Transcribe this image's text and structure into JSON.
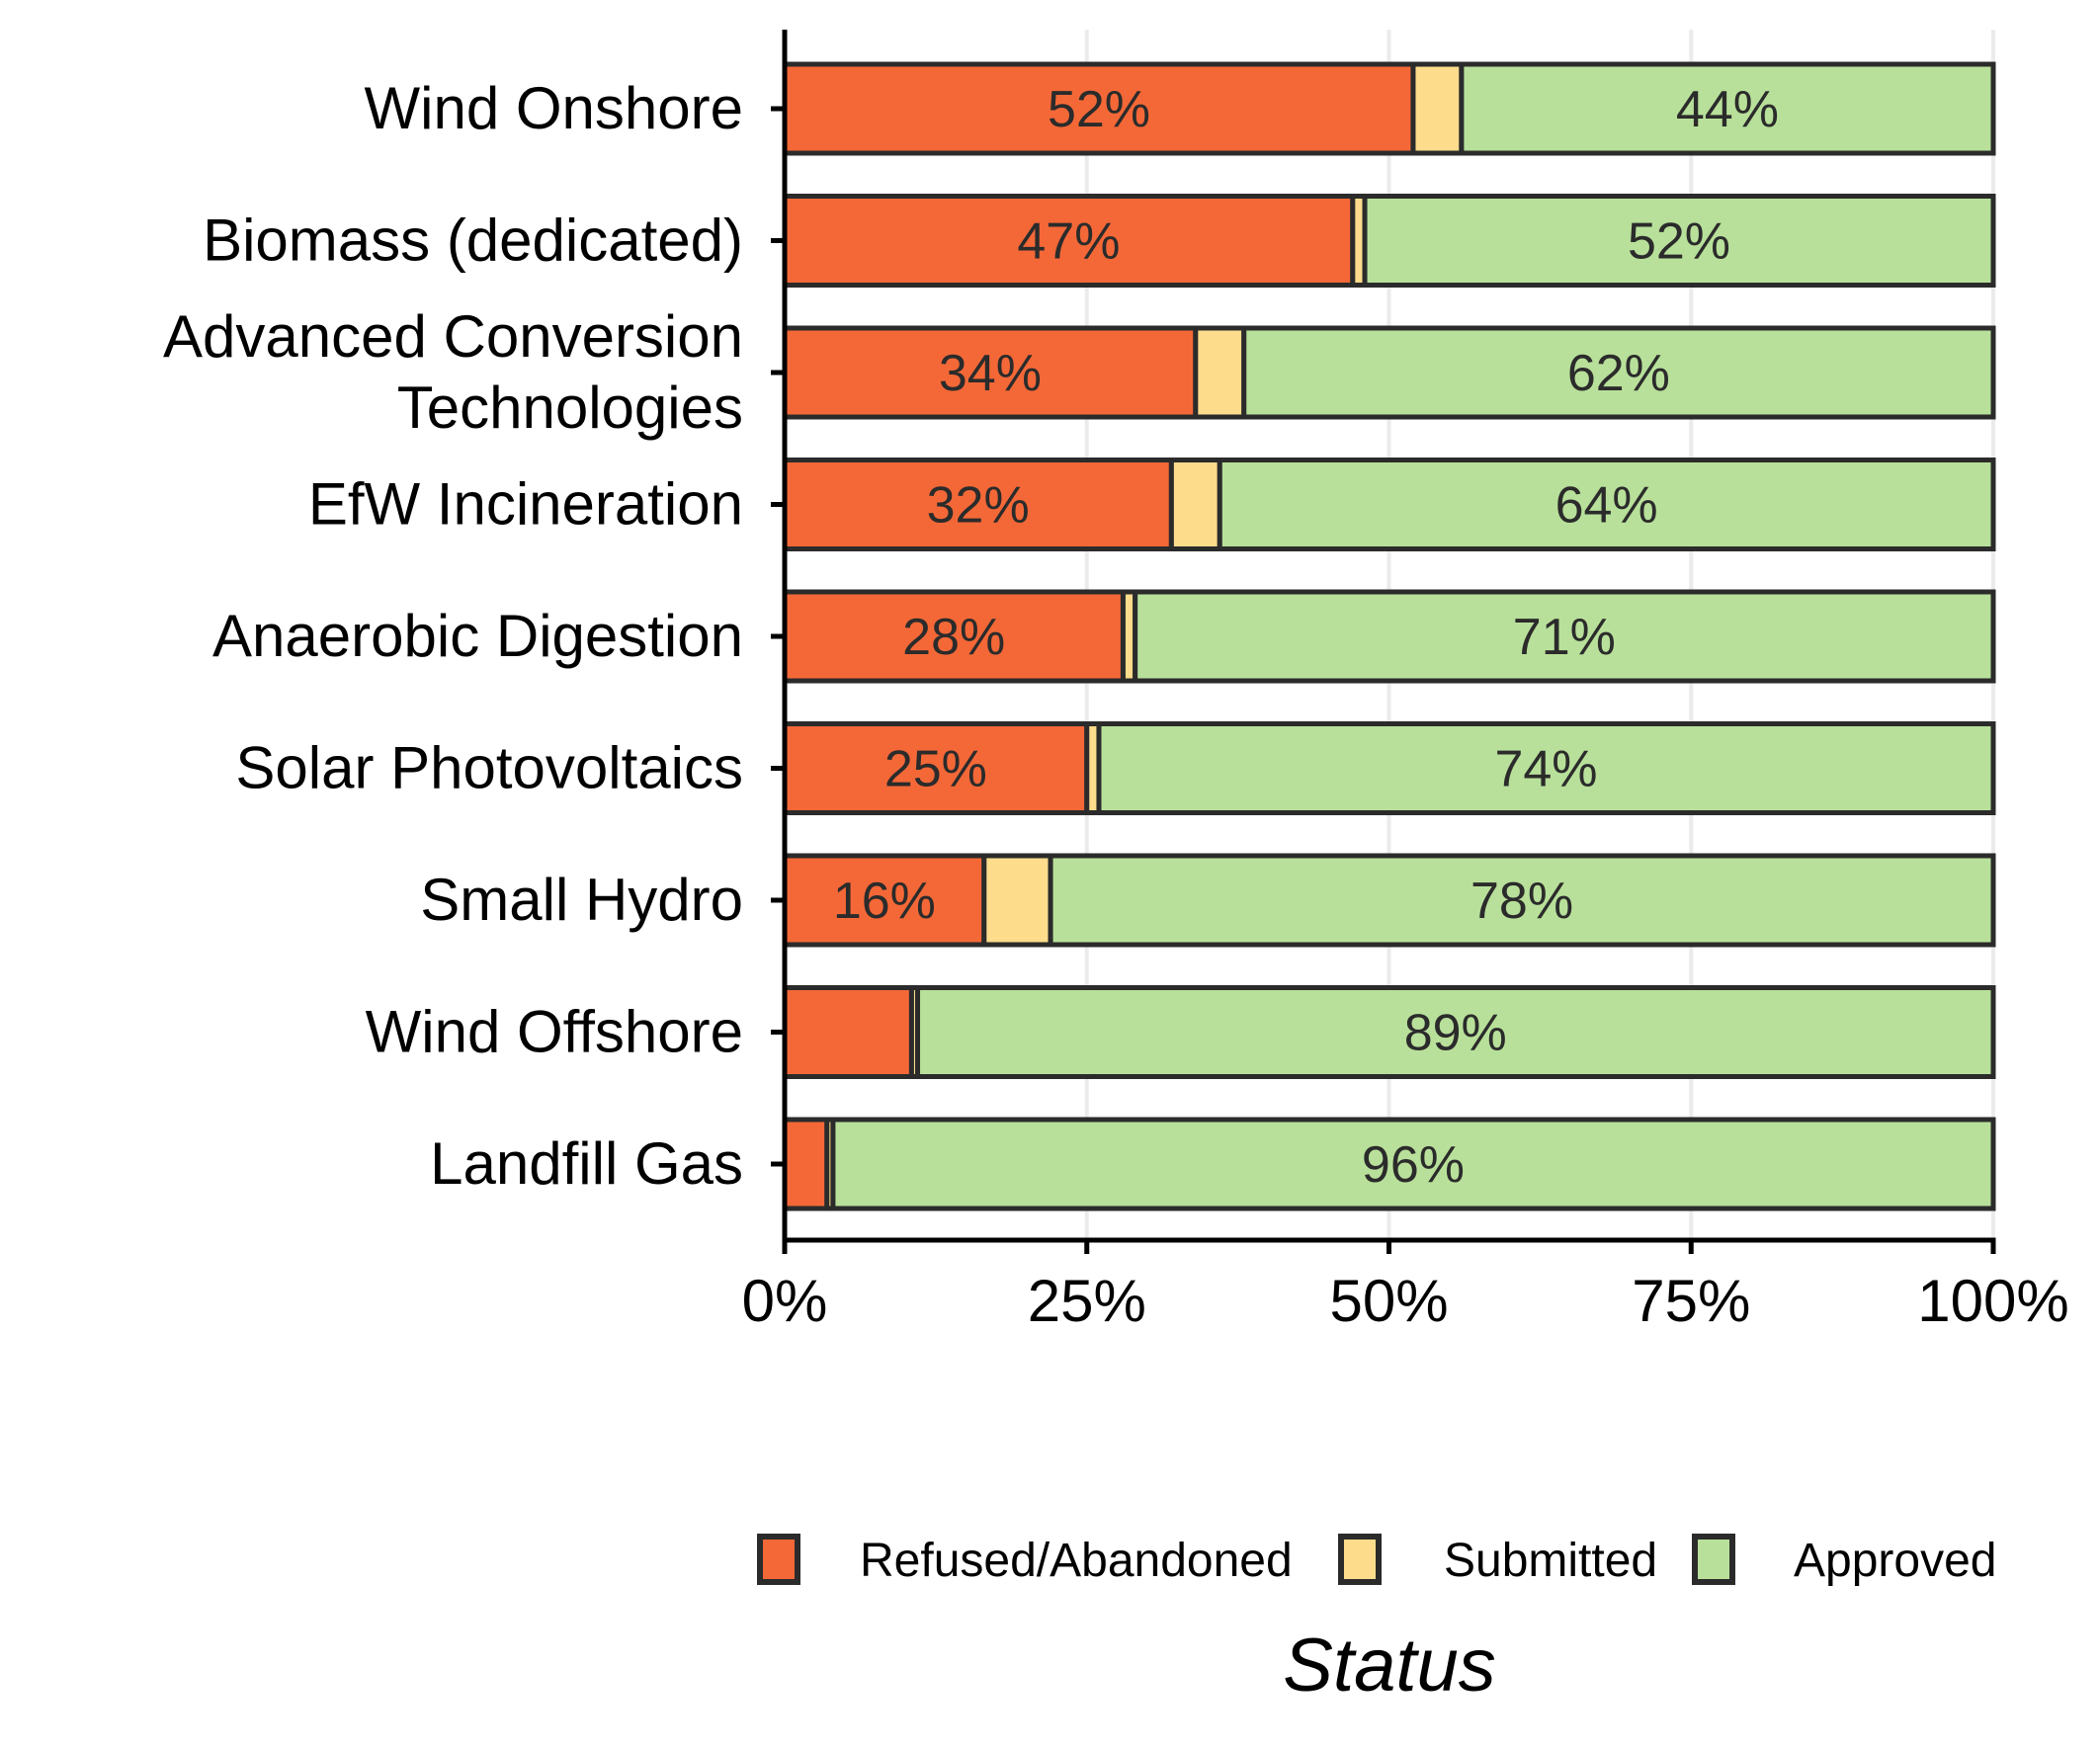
{
  "chart_data": {
    "type": "bar",
    "orientation": "horizontal",
    "stacked": true,
    "title": "",
    "xlabel": "",
    "ylabel": "",
    "xlim": [
      0,
      100
    ],
    "x_ticks": [
      0,
      25,
      50,
      75,
      100
    ],
    "x_tick_labels": [
      "0%",
      "25%",
      "50%",
      "75%",
      "100%"
    ],
    "categories": [
      "Wind Onshore",
      "Biomass (dedicated)",
      "Advanced Conversion Technologies",
      "EfW Incineration",
      "Anaerobic Digestion",
      "Solar Photovoltaics",
      "Small Hydro",
      "Wind Offshore",
      "Landfill Gas"
    ],
    "category_label_lines": [
      [
        "Wind Onshore"
      ],
      [
        "Biomass (dedicated)"
      ],
      [
        "Advanced Conversion",
        "Technologies"
      ],
      [
        "EfW Incineration"
      ],
      [
        "Anaerobic Digestion"
      ],
      [
        "Solar Photovoltaics"
      ],
      [
        "Small Hydro"
      ],
      [
        "Wind Offshore"
      ],
      [
        "Landfill Gas"
      ]
    ],
    "series": [
      {
        "name": "Refused/Abandoned",
        "color": "#f46837",
        "values": [
          52,
          47,
          34,
          32,
          28,
          25,
          16.5,
          10.5,
          3.5
        ],
        "labels": [
          "52%",
          "47%",
          "34%",
          "32%",
          "28%",
          "25%",
          "16%",
          "",
          ""
        ]
      },
      {
        "name": "Submitted",
        "color": "#fddc8c",
        "values": [
          4,
          1,
          4,
          4,
          1,
          1,
          5.5,
          0.5,
          0.5
        ],
        "labels": [
          "",
          "",
          "",
          "",
          "",
          "",
          "",
          "",
          ""
        ]
      },
      {
        "name": "Approved",
        "color": "#b8e09a",
        "values": [
          44,
          52,
          62,
          64,
          71,
          74,
          78,
          89,
          96
        ],
        "labels": [
          "44%",
          "52%",
          "62%",
          "64%",
          "71%",
          "74%",
          "78%",
          "89%",
          "96%"
        ]
      }
    ],
    "legend": {
      "title": "Status",
      "position": "bottom-right"
    },
    "grid": {
      "vertical_major": true,
      "horizontal": false
    }
  }
}
